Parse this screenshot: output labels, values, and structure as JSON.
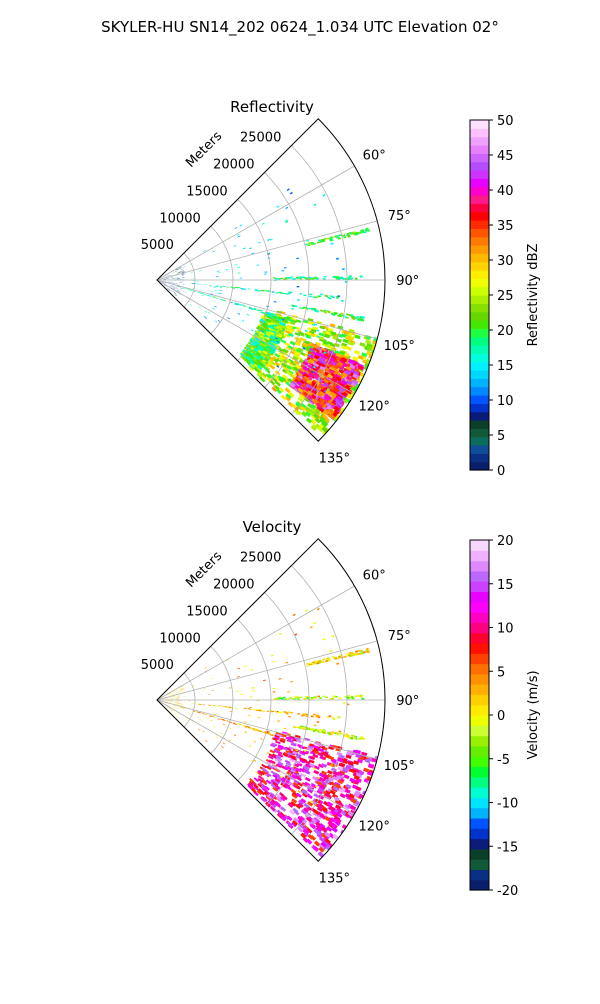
{
  "figure": {
    "suptitle": "SKYLER-HU  SN14_202  0624_1.034 UTC Elevation 02°"
  },
  "chart_data": [
    {
      "type": "heatmap",
      "subtype": "radar_ppi_sector",
      "title": "Reflectivity",
      "range_label": "Meters",
      "range_ticks": [
        5000,
        10000,
        15000,
        20000,
        25000
      ],
      "rlim": [
        0,
        30000
      ],
      "azimuth_ticks_deg": [
        60,
        75,
        90,
        105,
        120,
        135
      ],
      "azimuth_tick_labels": [
        "60°",
        "75°",
        "90°",
        "105°",
        "120°",
        "135°"
      ],
      "azimuth_range_deg": [
        45,
        135
      ],
      "grid": true,
      "colorbar": {
        "label": "Reflectivity dBZ",
        "vmin": 0,
        "vmax": 50,
        "ticks": [
          0,
          5,
          10,
          15,
          20,
          25,
          30,
          35,
          40,
          45,
          50
        ],
        "colors": [
          "#0a1f6b",
          "#0c2f86",
          "#0f4d99",
          "#0b6b5d",
          "#105a3a",
          "#0c3f2a",
          "#0a1b7a",
          "#0033cc",
          "#0055ff",
          "#0088ff",
          "#00b3ff",
          "#00d7ff",
          "#00f0ff",
          "#00ffdc",
          "#00ffb0",
          "#00ff80",
          "#20ff40",
          "#44e800",
          "#66d800",
          "#88e000",
          "#aaf000",
          "#ccff00",
          "#eeff00",
          "#ffee00",
          "#ffd400",
          "#ffb800",
          "#ff9900",
          "#ff7a00",
          "#ff5500",
          "#ff2a00",
          "#ff0000",
          "#ff0040",
          "#ff1a8c",
          "#ff00cc",
          "#e600ff",
          "#cc33ff",
          "#b34dff",
          "#cc66ff",
          "#e680ff",
          "#f0a0ff",
          "#ffc0ff",
          "#ffe0ff"
        ]
      },
      "echoes": [
        {
          "feature": "storm-cell",
          "az": [
            104,
            133
          ],
          "r": [
            16000,
            29800
          ],
          "value": 25
        },
        {
          "feature": "storm-core",
          "az": [
            112,
            128
          ],
          "r": [
            22000,
            29000
          ],
          "value": 38
        },
        {
          "feature": "storm-edge",
          "az": [
            106,
            132
          ],
          "r": [
            14500,
            17500
          ],
          "value": 21
        },
        {
          "feature": "clutter-line",
          "az": [
            95,
            96
          ],
          "r": [
            4000,
            24000
          ],
          "value": 18
        },
        {
          "feature": "clutter-line",
          "az": [
            106,
            107
          ],
          "r": [
            3000,
            16000
          ],
          "value": 17
        },
        {
          "feature": "clutter-line",
          "az": [
            88.5,
            89.5
          ],
          "r": [
            15000,
            27000
          ],
          "value": 19
        },
        {
          "feature": "clutter-line",
          "az": [
            76,
            77
          ],
          "r": [
            20000,
            28500
          ],
          "value": 21
        },
        {
          "feature": "clutter-line",
          "az": [
            100,
            101
          ],
          "r": [
            18000,
            27500
          ],
          "value": 20
        },
        {
          "feature": "near-clutter",
          "az": [
            60,
            130
          ],
          "r": [
            300,
            3500
          ],
          "value": 8
        },
        {
          "feature": "scattered",
          "az": [
            55,
            130
          ],
          "r": [
            3500,
            25000
          ],
          "value": 14
        }
      ]
    },
    {
      "type": "heatmap",
      "subtype": "radar_ppi_sector",
      "title": "Velocity",
      "range_label": "Meters",
      "range_ticks": [
        5000,
        10000,
        15000,
        20000,
        25000
      ],
      "rlim": [
        0,
        30000
      ],
      "azimuth_ticks_deg": [
        60,
        75,
        90,
        105,
        120,
        135
      ],
      "azimuth_tick_labels": [
        "60°",
        "75°",
        "90°",
        "105°",
        "120°",
        "135°"
      ],
      "azimuth_range_deg": [
        45,
        135
      ],
      "grid": true,
      "colorbar": {
        "label": "Velocity (m/s)",
        "vmin": -20,
        "vmax": 20,
        "ticks": [
          -20,
          -15,
          -10,
          -5,
          0,
          5,
          10,
          15,
          20
        ],
        "colors": [
          "#0a1f6b",
          "#0c2f86",
          "#105a3a",
          "#0c3f2a",
          "#0a1b7a",
          "#0033cc",
          "#0055ff",
          "#00b3ff",
          "#00e5ff",
          "#00ffd0",
          "#00ff80",
          "#00ff30",
          "#40ff00",
          "#66ee00",
          "#99f000",
          "#ccff33",
          "#eeff00",
          "#ffea00",
          "#ffd000",
          "#ffb000",
          "#ff9000",
          "#ff7000",
          "#ff4000",
          "#ff1000",
          "#ff0030",
          "#ff0080",
          "#ff00c0",
          "#ff00ff",
          "#e600ff",
          "#cc40ff",
          "#bb66ff",
          "#dd88ff",
          "#eeb0ff",
          "#f8d8ff"
        ]
      },
      "echoes": [
        {
          "feature": "storm-cell",
          "az": [
            104,
            133
          ],
          "r": [
            16000,
            29800
          ],
          "value": 12
        },
        {
          "feature": "clutter-line",
          "az": [
            95,
            96
          ],
          "r": [
            4000,
            24000
          ],
          "value": 2
        },
        {
          "feature": "clutter-line",
          "az": [
            106,
            107
          ],
          "r": [
            3000,
            16000
          ],
          "value": 3
        },
        {
          "feature": "clutter-line",
          "az": [
            88.5,
            89.5
          ],
          "r": [
            15000,
            27000
          ],
          "value": -3
        },
        {
          "feature": "clutter-line",
          "az": [
            76,
            77
          ],
          "r": [
            20000,
            28500
          ],
          "value": 1
        },
        {
          "feature": "clutter-line",
          "az": [
            100,
            101
          ],
          "r": [
            18000,
            27500
          ],
          "value": -1
        },
        {
          "feature": "near-clutter",
          "az": [
            60,
            130
          ],
          "r": [
            300,
            3500
          ],
          "value": 1
        },
        {
          "feature": "scattered",
          "az": [
            55,
            130
          ],
          "r": [
            3500,
            25000
          ],
          "value": 2
        }
      ]
    }
  ]
}
